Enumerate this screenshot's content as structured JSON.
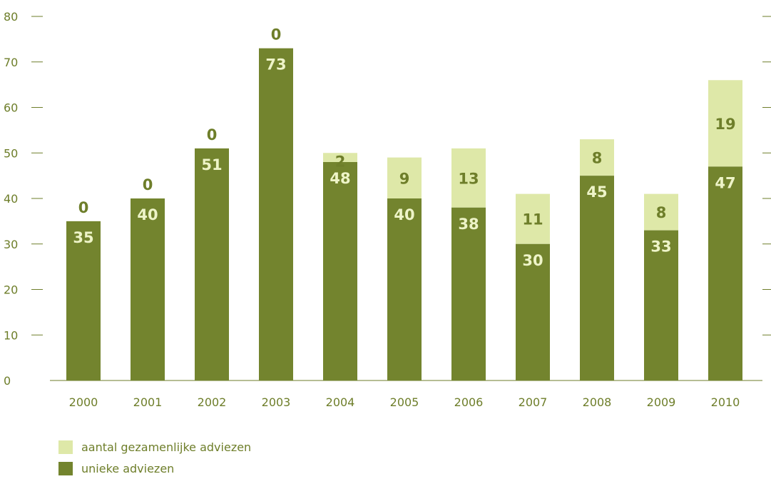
{
  "colors": {
    "unique": "#73842e",
    "joint": "#dee8a8",
    "text": "#6e7e2a",
    "label_on_dark": "#eef4c8",
    "axis": "#6e7e2a"
  },
  "chart_data": {
    "type": "bar",
    "stacked": true,
    "categories": [
      "2000",
      "2001",
      "2002",
      "2003",
      "2004",
      "2005",
      "2006",
      "2007",
      "2008",
      "2009",
      "2010"
    ],
    "series": [
      {
        "name": "unieke adviezen",
        "color": "#73842e",
        "values": [
          35,
          40,
          51,
          73,
          48,
          40,
          38,
          30,
          45,
          33,
          47
        ]
      },
      {
        "name": "aantal gezamenlijke adviezen",
        "color": "#dee8a8",
        "values": [
          0,
          0,
          0,
          0,
          2,
          9,
          13,
          11,
          8,
          8,
          19
        ]
      }
    ],
    "ylim": [
      0,
      80
    ],
    "yticks": [
      0,
      10,
      20,
      30,
      40,
      50,
      60,
      70,
      80
    ],
    "grid": false,
    "legend_position": "bottom-left"
  },
  "legend": {
    "items": [
      {
        "label": "aantal gezamenlijke adviezen",
        "color": "#dee8a8"
      },
      {
        "label": "unieke adviezen",
        "color": "#73842e"
      }
    ]
  }
}
